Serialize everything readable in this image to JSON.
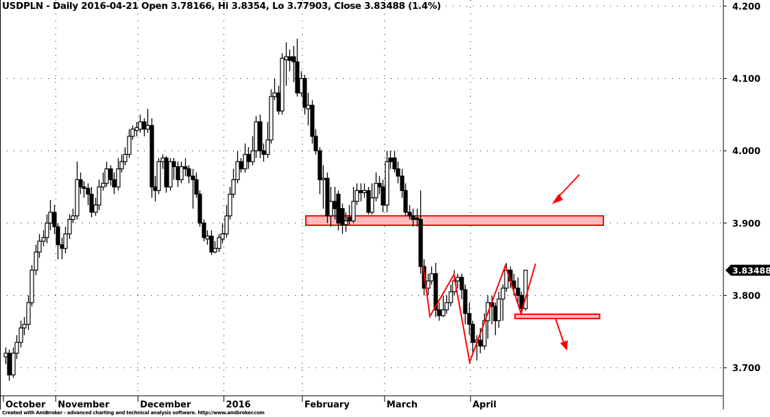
{
  "title": "USDPLN - Daily 2016-04-21 Open 3.78166, Hi 3.8354, Lo 3.77903, Close 3.83488 (1.4%)",
  "footer": "Created with AmiBroker - advanced charting and technical analysis software. http://www.amibroker.com",
  "chart_data": {
    "type": "candlestick",
    "symbol": "USDPLN",
    "period": "Daily",
    "ylim": [
      3.68,
      4.2
    ],
    "y_ticks": [
      "4.200",
      "4.100",
      "4.000",
      "3.900",
      "3.800",
      "3.700"
    ],
    "y_tick_values": [
      4.2,
      4.1,
      4.0,
      3.9,
      3.8,
      3.7
    ],
    "x_labels": [
      {
        "label": "October",
        "index": 0
      },
      {
        "label": "November",
        "index": 14
      },
      {
        "label": "December",
        "index": 36
      },
      {
        "label": "2016",
        "index": 59
      },
      {
        "label": "February",
        "index": 80
      },
      {
        "label": "March",
        "index": 102
      },
      {
        "label": "April",
        "index": 125
      }
    ],
    "grid": true,
    "last_price_label": "3.83488",
    "last_price": 3.83488,
    "colors": {
      "up": "#ffffff",
      "down": "#000000",
      "annotation": "#ff0000",
      "zone_fill": "#ffbcbc"
    },
    "zones": [
      {
        "from_index": 80,
        "to_index": 160,
        "low": 3.897,
        "high": 3.91
      },
      {
        "from_index": 136,
        "to_index": 159,
        "low": 3.768,
        "high": 3.774
      }
    ],
    "ohlc": [
      [
        3.715,
        3.728,
        3.705,
        3.72
      ],
      [
        3.72,
        3.725,
        3.682,
        3.69
      ],
      [
        3.69,
        3.728,
        3.686,
        3.72
      ],
      [
        3.72,
        3.745,
        3.712,
        3.735
      ],
      [
        3.735,
        3.765,
        3.728,
        3.755
      ],
      [
        3.755,
        3.77,
        3.745,
        3.76
      ],
      [
        3.76,
        3.8,
        3.752,
        3.79
      ],
      [
        3.79,
        3.842,
        3.785,
        3.835
      ],
      [
        3.835,
        3.87,
        3.828,
        3.86
      ],
      [
        3.86,
        3.885,
        3.852,
        3.875
      ],
      [
        3.875,
        3.89,
        3.868,
        3.88
      ],
      [
        3.88,
        3.912,
        3.872,
        3.9
      ],
      [
        3.9,
        3.932,
        3.89,
        3.915
      ],
      [
        3.915,
        3.925,
        3.885,
        3.895
      ],
      [
        3.895,
        3.9,
        3.85,
        3.87
      ],
      [
        3.87,
        3.88,
        3.85,
        3.865
      ],
      [
        3.865,
        3.895,
        3.858,
        3.885
      ],
      [
        3.885,
        3.912,
        3.878,
        3.905
      ],
      [
        3.905,
        3.92,
        3.9,
        3.91
      ],
      [
        3.91,
        3.985,
        3.905,
        3.96
      ],
      [
        3.96,
        3.97,
        3.94,
        3.95
      ],
      [
        3.95,
        3.958,
        3.935,
        3.948
      ],
      [
        3.948,
        3.955,
        3.925,
        3.94
      ],
      [
        3.94,
        3.95,
        3.908,
        3.915
      ],
      [
        3.915,
        3.935,
        3.91,
        3.925
      ],
      [
        3.925,
        3.96,
        3.918,
        3.95
      ],
      [
        3.95,
        3.97,
        3.945,
        3.955
      ],
      [
        3.955,
        3.985,
        3.95,
        3.975
      ],
      [
        3.975,
        3.98,
        3.952,
        3.96
      ],
      [
        3.96,
        3.97,
        3.94,
        3.95
      ],
      [
        3.95,
        3.99,
        3.945,
        3.975
      ],
      [
        3.975,
        3.995,
        3.97,
        3.985
      ],
      [
        3.985,
        4.005,
        3.98,
        3.995
      ],
      [
        3.995,
        4.03,
        3.99,
        4.02
      ],
      [
        4.02,
        4.035,
        4.015,
        4.03
      ],
      [
        4.028,
        4.04,
        4.02,
        4.032
      ],
      [
        4.03,
        4.05,
        4.025,
        4.04
      ],
      [
        4.04,
        4.045,
        4.02,
        4.03
      ],
      [
        4.03,
        4.058,
        4.025,
        4.035
      ],
      [
        4.035,
        4.045,
        3.935,
        3.95
      ],
      [
        3.95,
        3.965,
        3.93,
        3.945
      ],
      [
        3.945,
        3.99,
        3.94,
        3.985
      ],
      [
        3.985,
        3.995,
        3.975,
        3.99
      ],
      [
        3.99,
        3.993,
        3.942,
        3.95
      ],
      [
        3.95,
        3.99,
        3.945,
        3.985
      ],
      [
        3.985,
        3.99,
        3.96,
        3.978
      ],
      [
        3.978,
        3.985,
        3.95,
        3.96
      ],
      [
        3.96,
        3.985,
        3.955,
        3.978
      ],
      [
        3.978,
        3.99,
        3.965,
        3.975
      ],
      [
        3.975,
        3.98,
        3.955,
        3.965
      ],
      [
        3.965,
        3.975,
        3.92,
        3.96
      ],
      [
        3.96,
        3.97,
        3.935,
        3.94
      ],
      [
        3.94,
        3.945,
        3.895,
        3.9
      ],
      [
        3.9,
        3.905,
        3.875,
        3.88
      ],
      [
        3.878,
        3.89,
        3.87,
        3.882
      ],
      [
        3.882,
        3.89,
        3.856,
        3.86
      ],
      [
        3.86,
        3.875,
        3.858,
        3.865
      ],
      [
        3.865,
        3.885,
        3.86,
        3.88
      ],
      [
        3.878,
        3.9,
        3.872,
        3.885
      ],
      [
        3.885,
        3.925,
        3.88,
        3.91
      ],
      [
        3.91,
        3.95,
        3.905,
        3.94
      ],
      [
        3.94,
        3.975,
        3.935,
        3.96
      ],
      [
        3.96,
        4.0,
        3.955,
        3.985
      ],
      [
        3.985,
        3.99,
        3.97,
        3.975
      ],
      [
        3.975,
        4.01,
        3.97,
        3.995
      ],
      [
        3.995,
        4.005,
        3.975,
        3.985
      ],
      [
        3.985,
        4.02,
        3.98,
        4.0
      ],
      [
        4.0,
        4.048,
        3.99,
        4.04
      ],
      [
        4.04,
        4.05,
        3.99,
        4.0
      ],
      [
        4.0,
        4.01,
        3.985,
        3.995
      ],
      [
        3.995,
        4.04,
        3.99,
        4.015
      ],
      [
        4.015,
        4.085,
        4.01,
        4.075
      ],
      [
        4.075,
        4.1,
        4.07,
        4.08
      ],
      [
        4.08,
        4.09,
        4.05,
        4.055
      ],
      [
        4.055,
        4.135,
        4.05,
        4.128
      ],
      [
        4.126,
        4.15,
        4.09,
        4.13
      ],
      [
        4.13,
        4.14,
        4.11,
        4.125
      ],
      [
        4.13,
        4.145,
        4.095,
        4.123
      ],
      [
        4.123,
        4.155,
        4.075,
        4.08
      ],
      [
        4.08,
        4.11,
        4.075,
        4.1
      ],
      [
        4.1,
        4.105,
        4.05,
        4.06
      ],
      [
        4.058,
        4.08,
        4.035,
        4.063
      ],
      [
        4.063,
        4.07,
        4.01,
        4.02
      ],
      [
        4.02,
        4.03,
        3.995,
        4.0
      ],
      [
        4.0,
        4.005,
        3.94,
        3.96
      ],
      [
        3.96,
        3.98,
        3.92,
        3.962
      ],
      [
        3.962,
        3.97,
        3.9,
        3.91
      ],
      [
        3.91,
        3.95,
        3.895,
        3.93
      ],
      [
        3.93,
        3.95,
        3.905,
        3.92
      ],
      [
        3.94,
        3.945,
        3.89,
        3.9
      ],
      [
        3.92,
        3.927,
        3.885,
        3.898
      ],
      [
        3.898,
        3.915,
        3.888,
        3.903
      ],
      [
        3.908,
        3.925,
        3.898,
        3.903
      ],
      [
        3.903,
        3.95,
        3.9,
        3.93
      ],
      [
        3.93,
        3.955,
        3.925,
        3.945
      ],
      [
        3.945,
        3.955,
        3.93,
        3.942
      ],
      [
        3.942,
        3.955,
        3.935,
        3.945
      ],
      [
        3.945,
        3.95,
        3.912,
        3.915
      ],
      [
        3.915,
        3.955,
        3.912,
        3.935
      ],
      [
        3.935,
        3.97,
        3.93,
        3.955
      ],
      [
        3.955,
        3.965,
        3.94,
        3.95
      ],
      [
        3.95,
        3.96,
        3.915,
        3.925
      ],
      [
        3.925,
        4.0,
        3.915,
        3.985
      ],
      [
        3.99,
        4.0,
        3.975,
        3.985
      ],
      [
        3.99,
        4.0,
        3.97,
        3.975
      ],
      [
        3.975,
        3.985,
        3.955,
        3.965
      ],
      [
        3.965,
        3.975,
        3.935,
        3.945
      ],
      [
        3.945,
        3.955,
        3.91,
        3.915
      ],
      [
        3.915,
        3.925,
        3.905,
        3.91
      ],
      [
        3.91,
        3.92,
        3.895,
        3.905
      ],
      [
        3.907,
        3.92,
        3.895,
        3.905
      ],
      [
        3.905,
        3.945,
        3.83,
        3.84
      ],
      [
        3.84,
        3.85,
        3.8,
        3.81
      ],
      [
        3.81,
        3.83,
        3.8,
        3.82
      ],
      [
        3.82,
        3.84,
        3.815,
        3.83
      ],
      [
        3.83,
        3.845,
        3.77,
        3.78
      ],
      [
        3.78,
        3.79,
        3.765,
        3.772
      ],
      [
        3.772,
        3.8,
        3.77,
        3.78
      ],
      [
        3.78,
        3.8,
        3.775,
        3.79
      ],
      [
        3.79,
        3.815,
        3.785,
        3.805
      ],
      [
        3.805,
        3.835,
        3.8,
        3.82
      ],
      [
        3.82,
        3.83,
        3.81,
        3.825
      ],
      [
        3.825,
        3.83,
        3.795,
        3.808
      ],
      [
        3.808,
        3.815,
        3.76,
        3.775
      ],
      [
        3.775,
        3.79,
        3.745,
        3.76
      ],
      [
        3.76,
        3.765,
        3.72,
        3.735
      ],
      [
        3.735,
        3.745,
        3.71,
        3.738
      ],
      [
        3.738,
        3.755,
        3.72,
        3.73
      ],
      [
        3.73,
        3.775,
        3.725,
        3.765
      ],
      [
        3.765,
        3.8,
        3.74,
        3.79
      ],
      [
        3.79,
        3.8,
        3.76,
        3.785
      ],
      [
        3.785,
        3.79,
        3.745,
        3.765
      ],
      [
        3.765,
        3.805,
        3.755,
        3.795
      ],
      [
        3.795,
        3.815,
        3.765,
        3.81
      ],
      [
        3.81,
        3.845,
        3.805,
        3.835
      ],
      [
        3.835,
        3.84,
        3.81,
        3.82
      ],
      [
        3.82,
        3.83,
        3.8,
        3.81
      ],
      [
        3.81,
        3.825,
        3.79,
        3.8
      ],
      [
        3.8,
        3.805,
        3.775,
        3.782
      ],
      [
        3.78166,
        3.8354,
        3.77903,
        3.83488
      ]
    ]
  }
}
